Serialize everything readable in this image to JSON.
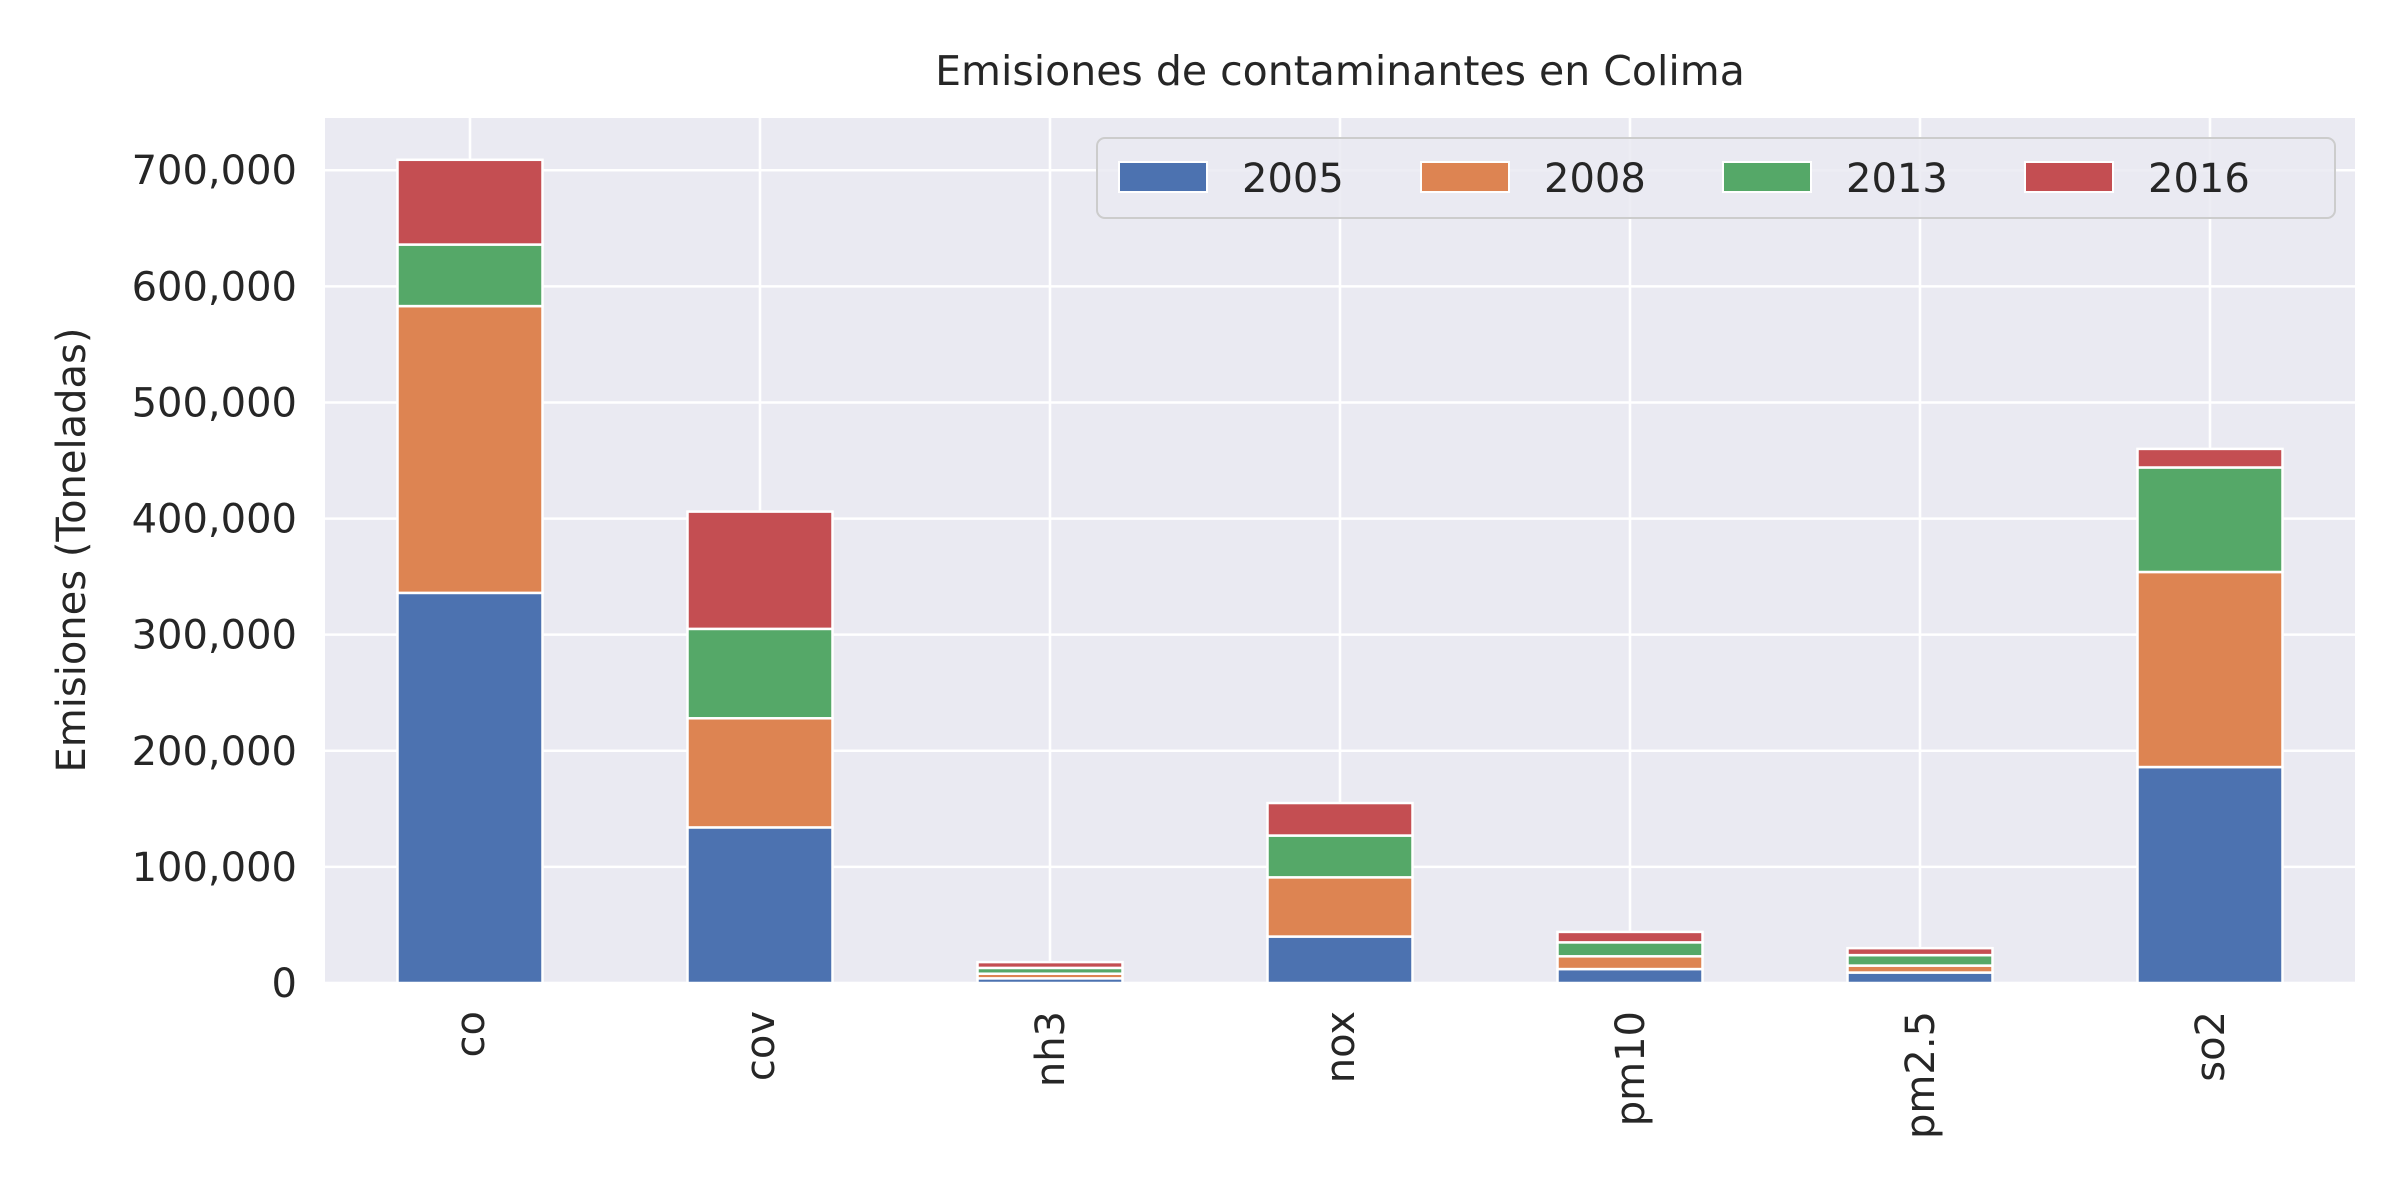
{
  "chart_data": {
    "type": "bar",
    "stacked": true,
    "title": "Emisiones de contaminantes en Colima",
    "xlabel": "",
    "ylabel": "Emisiones (Toneladas)",
    "categories": [
      "co",
      "cov",
      "nh3",
      "nox",
      "pm10",
      "pm2.5",
      "so2"
    ],
    "series": [
      {
        "name": "2005",
        "color": "#4C72B0",
        "values": [
          336000,
          134000,
          4000,
          40000,
          12000,
          9000,
          186000
        ]
      },
      {
        "name": "2008",
        "color": "#DD8452",
        "values": [
          247000,
          94000,
          4000,
          51000,
          11000,
          6000,
          168000
        ]
      },
      {
        "name": "2013",
        "color": "#55A868",
        "values": [
          53000,
          77000,
          5000,
          36000,
          12000,
          9000,
          90000
        ]
      },
      {
        "name": "2016",
        "color": "#C44E52",
        "values": [
          73000,
          101000,
          5000,
          28000,
          9000,
          6000,
          16000
        ]
      }
    ],
    "ylim": [
      0,
      745000
    ],
    "yticks": [
      0,
      100000,
      200000,
      300000,
      400000,
      500000,
      600000,
      700000
    ],
    "ytick_labels": [
      "0",
      "100,000",
      "200,000",
      "300,000",
      "400,000",
      "500,000",
      "600,000",
      "700,000"
    ],
    "grid": true,
    "legend": {
      "position": "top-right",
      "columns": 4
    }
  }
}
